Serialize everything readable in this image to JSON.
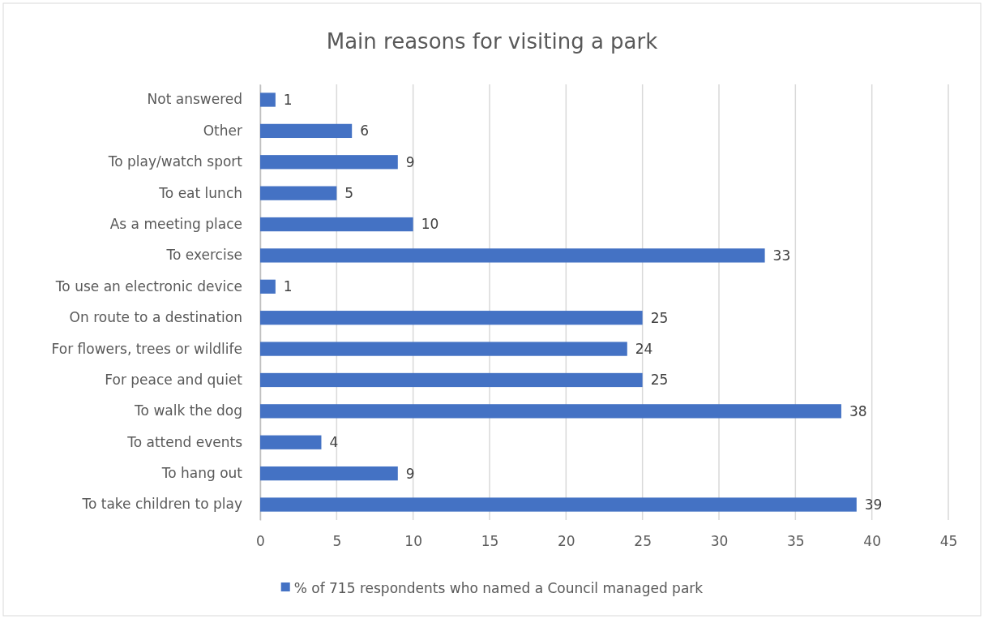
{
  "chart_data": {
    "type": "bar",
    "orientation": "horizontal",
    "title": "Main reasons for visiting a park",
    "categories": [
      "Not answered",
      "Other",
      "To play/watch sport",
      "To eat lunch",
      "As a meeting place",
      "To exercise",
      "To use an electronic device",
      "On route to a destination",
      "For flowers, trees or wildlife",
      "For peace and quiet",
      "To walk the dog",
      "To attend events",
      "To hang out",
      "To take children to play"
    ],
    "series": [
      {
        "name": "% of 715 respondents who named a Council managed park",
        "color": "#4472c4",
        "values": [
          1,
          6,
          9,
          5,
          10,
          33,
          1,
          25,
          24,
          25,
          38,
          4,
          9,
          39
        ]
      }
    ],
    "xlim": [
      0,
      45
    ],
    "xticks": [
      0,
      5,
      10,
      15,
      20,
      25,
      30,
      35,
      40,
      45
    ],
    "grid": "x",
    "legend": "bottom",
    "data_labels": true
  }
}
